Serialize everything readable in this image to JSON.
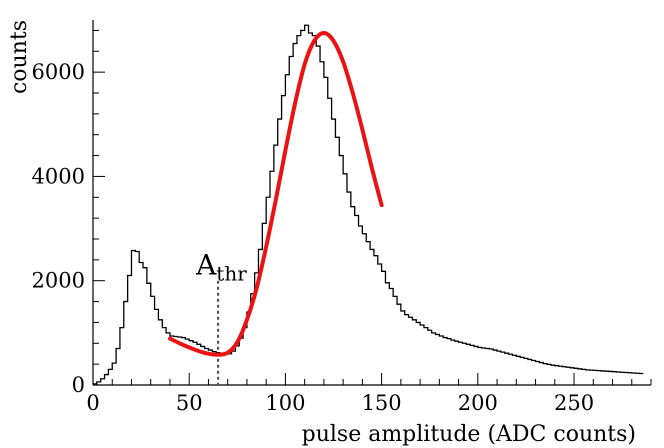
{
  "chart_data": {
    "type": "line",
    "title": "",
    "xlabel": "pulse amplitude (ADC counts)",
    "ylabel": "counts",
    "xlim": [
      0,
      290
    ],
    "ylim": [
      0,
      7000
    ],
    "x_ticks": [
      0,
      50,
      100,
      150,
      200,
      250
    ],
    "x_tick_labels": [
      "0",
      "50",
      "100",
      "150",
      "200",
      "250"
    ],
    "y_ticks": [
      0,
      2000,
      4000,
      6000
    ],
    "y_tick_labels": [
      "0",
      "2000",
      "4000",
      "6000"
    ],
    "grid": false,
    "histogram": {
      "name": "measured spectrum",
      "color": "#000000",
      "bin_width": 2,
      "x_start": 0,
      "values": [
        20,
        60,
        120,
        200,
        300,
        420,
        700,
        1100,
        1600,
        2100,
        2580,
        2560,
        2350,
        2250,
        1950,
        1700,
        1450,
        1250,
        1100,
        1000,
        940,
        930,
        920,
        910,
        880,
        850,
        820,
        780,
        740,
        700,
        670,
        640,
        620,
        600,
        590,
        600,
        650,
        750,
        900,
        1100,
        1400,
        1750,
        2150,
        2600,
        3100,
        3600,
        4100,
        4600,
        5100,
        5550,
        5950,
        6300,
        6550,
        6700,
        6800,
        6900,
        6750,
        6700,
        6500,
        6200,
        5900,
        5500,
        5100,
        4750,
        4400,
        4050,
        3700,
        3420,
        3250,
        3050,
        2900,
        2750,
        2600,
        2480,
        2320,
        2180,
        1960,
        1850,
        1700,
        1550,
        1420,
        1350,
        1300,
        1250,
        1200,
        1150,
        1100,
        1050,
        1000,
        970,
        940,
        910,
        890,
        860,
        840,
        820,
        800,
        780,
        760,
        740,
        720,
        710,
        700,
        690,
        670,
        650,
        630,
        610,
        590,
        570,
        550,
        530,
        510,
        490,
        470,
        450,
        430,
        410,
        395,
        380,
        370,
        360,
        350,
        340,
        330,
        320,
        310,
        300,
        290,
        285,
        280,
        275,
        270,
        265,
        260,
        255,
        250,
        245,
        240,
        235,
        230,
        225,
        220
      ]
    },
    "fit": {
      "name": "fit",
      "color": "#ee1111",
      "x": [
        40,
        45,
        50,
        55,
        60,
        65,
        70,
        75,
        80,
        85,
        90,
        95,
        100,
        105,
        110,
        115,
        120,
        125,
        130,
        135,
        140,
        145,
        150
      ],
      "y": [
        890,
        800,
        720,
        650,
        600,
        580,
        620,
        820,
        1250,
        1850,
        2650,
        3550,
        4500,
        5400,
        6150,
        6600,
        6750,
        6600,
        6200,
        5600,
        4900,
        4150,
        3450
      ]
    },
    "annotations": [
      {
        "text_main": "A",
        "text_sub": "thr",
        "x": 65,
        "y_top": 2000,
        "style": "dotted vertical line"
      }
    ]
  }
}
